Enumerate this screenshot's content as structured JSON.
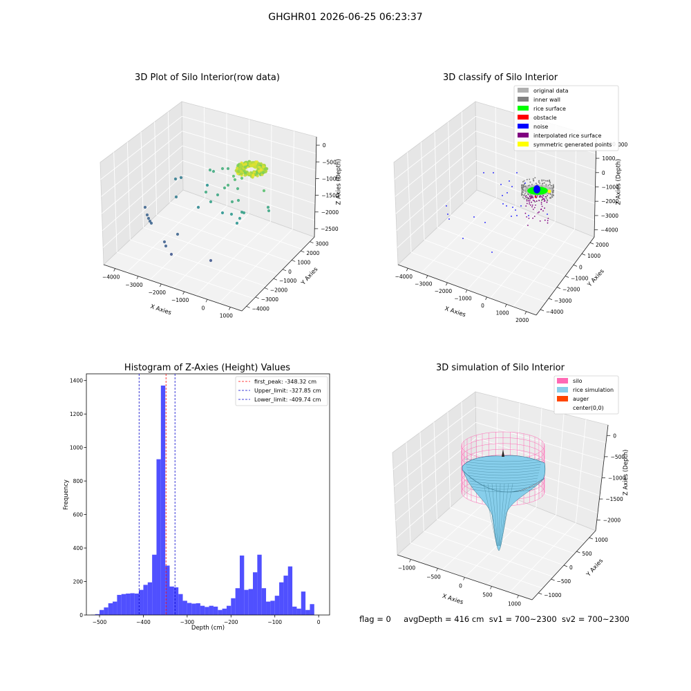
{
  "figure_title": "GHGHR01 2026-06-25 06:23:37",
  "footer": {
    "flag": "flag = 0",
    "avg_depth": "avgDepth = 416 cm",
    "sv1": "sv1 = 700~2300",
    "sv2": "sv2 = 700~2300"
  },
  "colors": {
    "histogram_bar": "#5050ff",
    "first_peak_line": "#ff0000",
    "limit_lines": "#0000cc",
    "silo_mesh": "#ff69b4",
    "rice_surface": "#87ceeb",
    "auger": "#ff4500",
    "pane_left": "#e6e6e6",
    "pane_right": "#ececec",
    "pane_floor": "#f2f2f2"
  },
  "chart_data": [
    {
      "type": "scatter3d",
      "title": "3D Plot of Silo Interior(row data)",
      "xlabel": "X Axies",
      "ylabel": "Y Axies",
      "zlabel": "Z Axies (Depth)",
      "x_ticks": [
        "−4000",
        "−3000",
        "−2000",
        "−1000",
        "0",
        "1000"
      ],
      "y_ticks": [
        "−4000",
        "−3000",
        "−2000",
        "−1000",
        "0",
        "1000",
        "2000",
        "3000"
      ],
      "z_ticks": [
        "0",
        "−500",
        "−1000",
        "−1500",
        "−2000",
        "−2500"
      ],
      "colormap": "viridis",
      "grid": true
    },
    {
      "type": "scatter3d",
      "title": "3D classify of Silo Interior",
      "xlabel": "X Axies",
      "ylabel": "Y Axies",
      "zlabel": "Z Axies (Depth)",
      "x_ticks": [
        "−4000",
        "−3000",
        "−2000",
        "−1000",
        "0",
        "1000",
        "2000"
      ],
      "y_ticks": [
        "−4000",
        "−3000",
        "−2000",
        "−1000",
        "0",
        "1000",
        "2000"
      ],
      "z_ticks": [
        "2000",
        "1000",
        "0",
        "−1000",
        "−2000",
        "−3000",
        "−4000"
      ],
      "z_tick_partial": "000",
      "legend_placement": "top-right",
      "legend": [
        {
          "label": "original data",
          "color": "#b0b0b0"
        },
        {
          "label": "inner wall",
          "color": "#808080"
        },
        {
          "label": "rice surface",
          "color": "#00ff00"
        },
        {
          "label": "obstacle",
          "color": "#ff0000"
        },
        {
          "label": "noise",
          "color": "#0000ff"
        },
        {
          "label": "interpolated rice surface",
          "color": "#800080"
        },
        {
          "label": "symmetric generated points",
          "color": "#ffff00"
        }
      ],
      "grid": true
    },
    {
      "type": "bar",
      "title": "Histogram of Z-Axies (Height) Values",
      "xlabel": "Depth (cm)",
      "ylabel": "Frequency",
      "xlim": [
        -530,
        25
      ],
      "ylim": [
        0,
        1440
      ],
      "x_ticks": [
        -500,
        -400,
        -300,
        -200,
        -100,
        0
      ],
      "x_tick_labels": [
        "−500",
        "−400",
        "−300",
        "−200",
        "−100",
        "0"
      ],
      "y_ticks": [
        0,
        200,
        400,
        600,
        800,
        1000,
        1200,
        1400
      ],
      "y_tick_labels": [
        "0",
        "200",
        "400",
        "600",
        "800",
        "1000",
        "1200",
        "1400"
      ],
      "bin_start": -520,
      "bin_width": 10,
      "values": [
        2,
        5,
        30,
        45,
        70,
        80,
        120,
        125,
        128,
        130,
        128,
        150,
        180,
        195,
        360,
        930,
        1370,
        295,
        170,
        165,
        125,
        85,
        72,
        68,
        70,
        55,
        48,
        55,
        50,
        30,
        38,
        55,
        100,
        160,
        355,
        150,
        155,
        255,
        360,
        160,
        80,
        85,
        115,
        195,
        235,
        290,
        50,
        38,
        140,
        30,
        65
      ],
      "vlines": [
        {
          "x": -348.32,
          "label": "first_peak: -348.32 cm",
          "style": "dashed",
          "color": "#ff0000"
        },
        {
          "x": -327.85,
          "label": "Upper_limit: -327.85 cm",
          "style": "dashed",
          "color": "#0000cc"
        },
        {
          "x": -409.74,
          "label": "Lower_limit: -409.74 cm",
          "style": "dashed",
          "color": "#0000cc"
        }
      ],
      "legend_placement": "top-right"
    },
    {
      "type": "surface3d",
      "title": "3D simulation of Silo Interior",
      "xlabel": "X Axies",
      "ylabel": "Y Axies",
      "zlabel": "Z Axies (Depth)",
      "x_ticks": [
        "−1000",
        "−500",
        "0",
        "500",
        "1000"
      ],
      "y_ticks": [
        "−1000",
        "−500",
        "0",
        "500",
        "1000"
      ],
      "z_ticks": [
        "0",
        "−500",
        "−1000",
        "−1500",
        "−2000"
      ],
      "legend_placement": "top-right",
      "legend": [
        {
          "label": "silo",
          "color": "#ff69b4"
        },
        {
          "label": "rice simulation",
          "color": "#87ceeb"
        },
        {
          "label": "auger",
          "color": "#ff4500"
        },
        {
          "label": "center(0,0)",
          "color": ""
        }
      ],
      "grid": true
    }
  ]
}
